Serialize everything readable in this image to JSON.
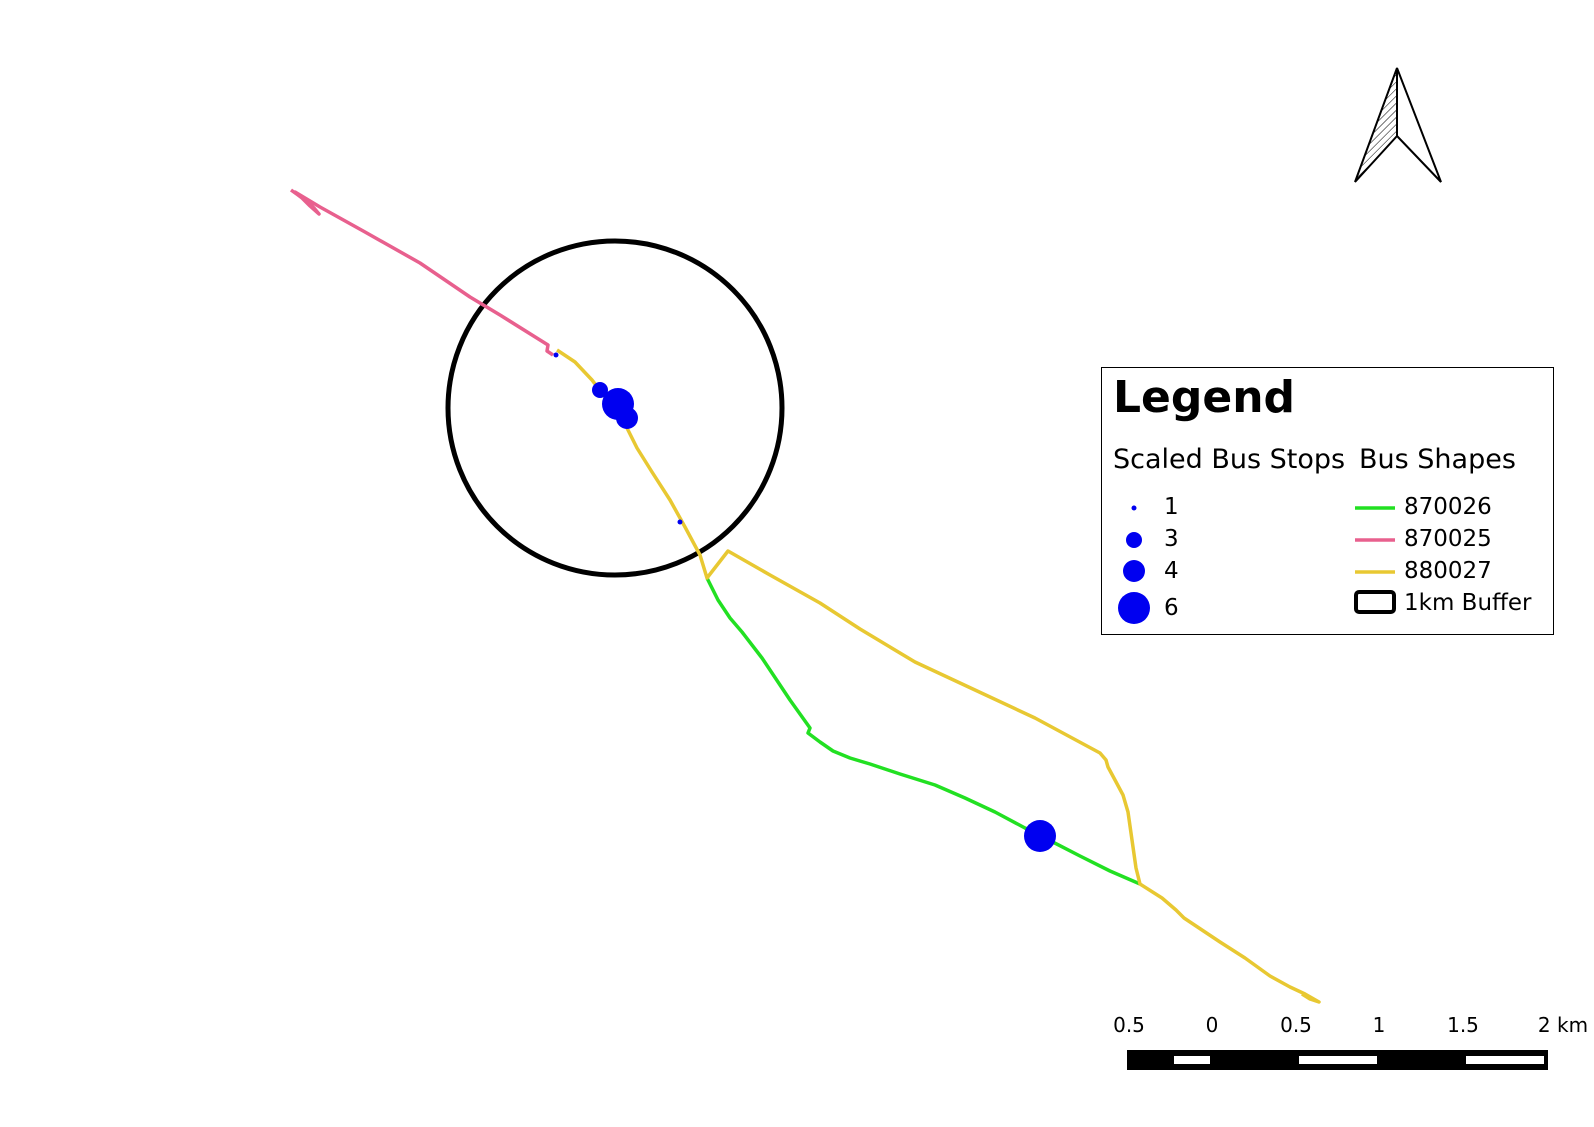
{
  "legend": {
    "title": "Legend",
    "stops_heading": "Scaled Bus Stops",
    "shapes_heading": "Bus Shapes",
    "stop_sizes": [
      "1",
      "3",
      "4",
      "6"
    ],
    "routes": [
      {
        "id": "870026",
        "color": "#22e022"
      },
      {
        "id": "870025",
        "color": "#e8608e"
      },
      {
        "id": "880027",
        "color": "#e8c832"
      }
    ],
    "buffer_label": "1km Buffer"
  },
  "scale_bar": {
    "labels": [
      "0.5",
      "0",
      "0.5",
      "1",
      "1.5",
      "2 km"
    ]
  },
  "colors": {
    "stop_fill": "#0000f0",
    "buffer_stroke": "#000000"
  },
  "north_arrow_icon": "north-arrow-icon"
}
